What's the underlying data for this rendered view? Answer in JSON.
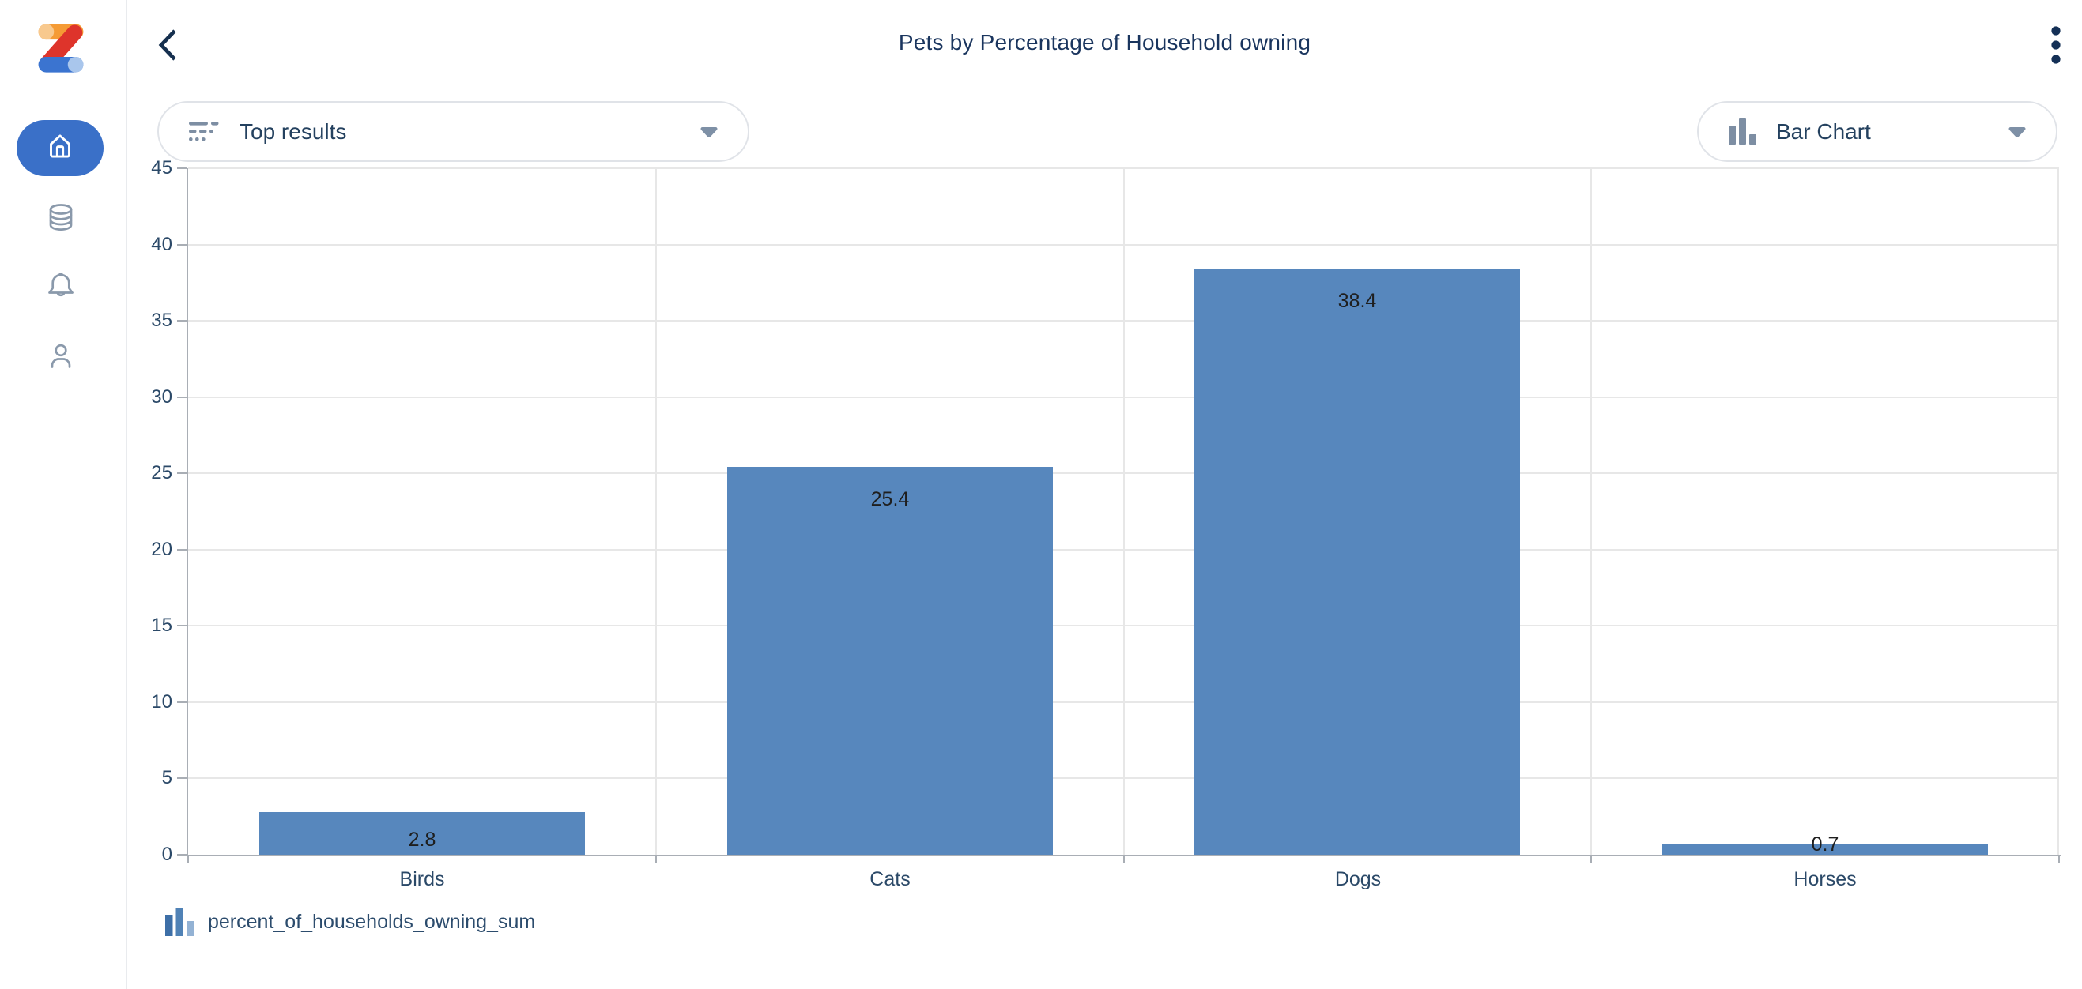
{
  "header": {
    "title": "Pets by Percentage of Household owning",
    "back_icon": "chevron-left",
    "menu_icon": "kebab-vertical"
  },
  "sidebar": {
    "logo": "zoho-logo",
    "items": [
      {
        "name": "home",
        "icon": "home-icon",
        "active": true
      },
      {
        "name": "data",
        "icon": "database-icon",
        "active": false
      },
      {
        "name": "notifications",
        "icon": "bell-icon",
        "active": false
      },
      {
        "name": "profile",
        "icon": "user-icon",
        "active": false
      }
    ]
  },
  "controls": {
    "results_filter": {
      "label": "Top results",
      "icon": "filter-rows-icon",
      "caret": "triangle-down"
    },
    "chart_type": {
      "label": "Bar Chart",
      "icon": "bar-chart-icon",
      "caret": "triangle-down"
    }
  },
  "legend": {
    "icon": "bar-chart-icon",
    "label": "percent_of_households_owning_sum"
  },
  "colors": {
    "bar": "#5787bd",
    "active_nav_blue": "#3a70c8",
    "navy_text": "#1a355e",
    "axis_text": "#2b4968",
    "grid_line": "#e7e7e7",
    "axis_line": "#a9aeb5",
    "control_icon_gray": "#7d8ea3",
    "sidebar_icon_gray": "#8a99ab",
    "data_label": "#1e1e1e"
  },
  "chart_data": {
    "type": "bar",
    "title": "Pets by Percentage of Household owning",
    "categories": [
      "Birds",
      "Cats",
      "Dogs",
      "Horses"
    ],
    "series": [
      {
        "name": "percent_of_households_owning_sum",
        "values": [
          2.8,
          25.4,
          38.4,
          0.7
        ]
      }
    ],
    "data_labels": [
      "2.8",
      "25.4",
      "38.4",
      "0.7"
    ],
    "xlabel": "",
    "ylabel": "",
    "ylim": [
      0,
      45
    ],
    "ytick_step": 5,
    "grid": true,
    "legend_position": "bottom",
    "legend_entries": [
      "percent_of_households_owning_sum"
    ]
  }
}
